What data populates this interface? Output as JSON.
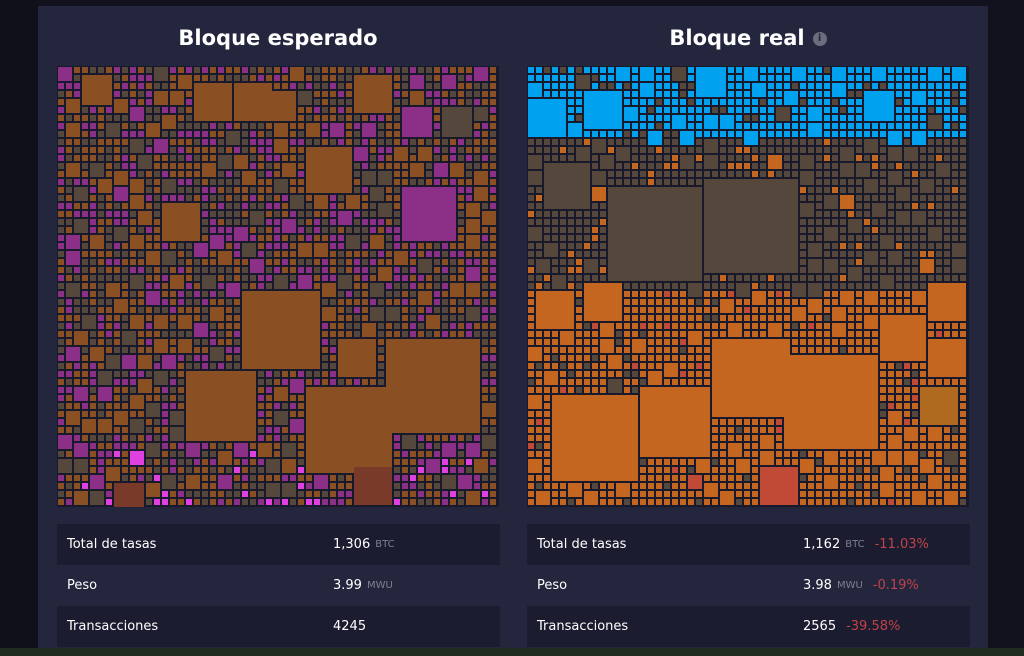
{
  "expected": {
    "title": "Bloque esperado",
    "stats": [
      {
        "label": "Total de tasas",
        "value": "1,306",
        "unit": "BTC"
      },
      {
        "label": "Peso",
        "value": "3.99",
        "unit": "MWU"
      },
      {
        "label": "Transacciones",
        "value": "4245",
        "unit": ""
      }
    ]
  },
  "actual": {
    "title": "Bloque real",
    "info_icon": "info-icon",
    "stats": [
      {
        "label": "Total de tasas",
        "value": "1,162",
        "unit": "BTC",
        "diff": "-11.03%"
      },
      {
        "label": "Peso",
        "value": "3.98",
        "unit": "MWU",
        "diff": "-0.19%"
      },
      {
        "label": "Transacciones",
        "value": "2565",
        "unit": "",
        "diff": "-39.58%"
      }
    ]
  },
  "colors": {
    "fee_orange": "#c4661f",
    "fee_brown": "#8a4f22",
    "low_fee": "#55473b",
    "added": "#00a2f0",
    "prioritized": "#8c2f87",
    "negative": "#c0424a"
  }
}
